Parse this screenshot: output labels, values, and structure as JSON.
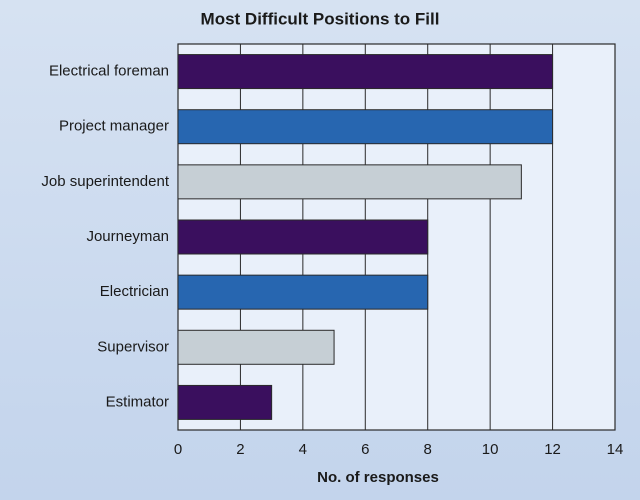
{
  "chart_data": {
    "type": "bar",
    "orientation": "horizontal",
    "title": "Most Difficult Positions to Fill",
    "x_label": "No. of responses",
    "categories": [
      "Electrical foreman",
      "Project manager",
      "Job superintendent",
      "Journeyman",
      "Electrician",
      "Supervisor",
      "Estimator"
    ],
    "values": [
      12,
      12,
      11,
      8,
      8,
      5,
      3
    ],
    "colors": [
      "#3a0f5e",
      "#2766b0",
      "#c6cfd5",
      "#3a0f5e",
      "#2766b0",
      "#c6cfd5",
      "#3a0f5e"
    ],
    "xlim": [
      0,
      14
    ],
    "xticks": [
      0,
      2,
      4,
      6,
      8,
      10,
      12,
      14
    ],
    "grid": true
  }
}
